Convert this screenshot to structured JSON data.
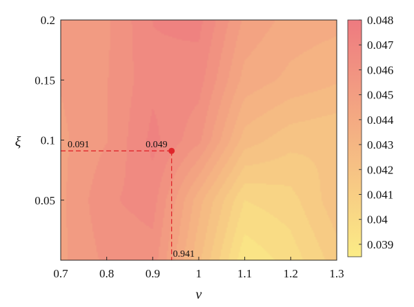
{
  "chart_data": {
    "type": "heatmap",
    "title": "",
    "xlabel": "ν",
    "ylabel": "ξ",
    "xlim": [
      0.7,
      1.3
    ],
    "ylim": [
      0.0,
      0.2
    ],
    "x_ticks": [
      0.7,
      0.8,
      0.9,
      1.0,
      1.1,
      1.2,
      1.3
    ],
    "x_tick_labels": [
      "0.7",
      "0.8",
      "0.9",
      "1",
      "1.1",
      "1.2",
      "1.3"
    ],
    "y_ticks": [
      0.05,
      0.1,
      0.15,
      0.2
    ],
    "y_tick_labels": [
      "0.05",
      "0.1",
      "0.15",
      "0.2"
    ],
    "colorbar": {
      "range": [
        0.0385,
        0.048
      ],
      "ticks": [
        0.039,
        0.04,
        0.041,
        0.042,
        0.043,
        0.044,
        0.045,
        0.046,
        0.047,
        0.048
      ],
      "tick_labels": [
        "0.039",
        "0.04",
        "0.041",
        "0.042",
        "0.043",
        "0.044",
        "0.045",
        "0.046",
        "0.047",
        "0.048"
      ],
      "color_low": "#fbec86",
      "color_high": "#ee7a80",
      "placement": "right"
    },
    "grid_x": [
      0.7,
      0.8,
      0.9,
      1.0,
      1.1,
      1.2,
      1.3
    ],
    "grid_y": [
      0.2,
      0.15,
      0.1,
      0.05,
      0.0
    ],
    "z": [
      [
        0.045,
        0.0455,
        0.047,
        0.0472,
        0.0448,
        0.044,
        0.0438
      ],
      [
        0.045,
        0.0456,
        0.0468,
        0.0466,
        0.044,
        0.0434,
        0.043
      ],
      [
        0.0448,
        0.0456,
        0.0472,
        0.0458,
        0.0426,
        0.0418,
        0.0416
      ],
      [
        0.0448,
        0.0462,
        0.0466,
        0.0432,
        0.0402,
        0.0406,
        0.042
      ],
      [
        0.0448,
        0.0458,
        0.046,
        0.0424,
        0.039,
        0.0398,
        0.0412
      ]
    ],
    "marker": {
      "x": 0.941,
      "y": 0.091,
      "value_label": "0.049",
      "x_label": "0.941",
      "y_label": "0.091",
      "color": "#e0262b"
    }
  }
}
